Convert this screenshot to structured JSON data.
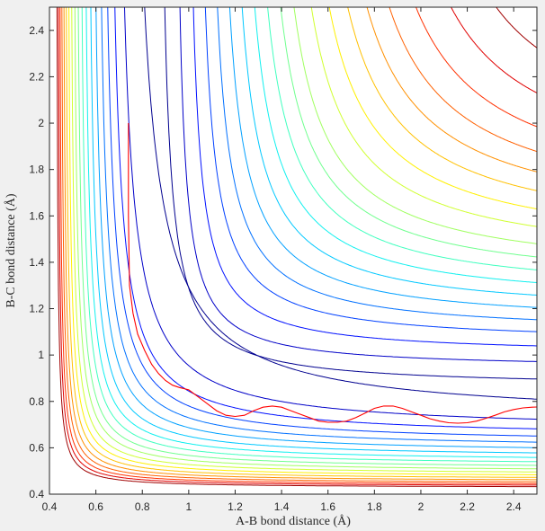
{
  "chart_data": {
    "type": "contour",
    "title": "",
    "xlabel": "A-B bond distance (Å)",
    "ylabel": "B-C bond distance (Å)",
    "xlim": [
      0.4,
      2.5
    ],
    "ylim": [
      0.4,
      2.5
    ],
    "x_ticks": [
      0.4,
      0.6,
      0.8,
      1,
      1.2,
      1.4,
      1.6,
      1.8,
      2,
      2.2,
      2.4
    ],
    "y_ticks": [
      0.4,
      0.6,
      0.8,
      1,
      1.2,
      1.4,
      1.6,
      1.8,
      2,
      2.2,
      2.4
    ],
    "grid": false,
    "colormap": "jet",
    "contour_levels": [
      {
        "x0": 0.72,
        "y0": 0.72,
        "k": 0.16,
        "color": "#00008f"
      },
      {
        "x0": 0.673,
        "y0": 0.673,
        "k": 0.092,
        "color": "#0000c8"
      },
      {
        "x0": 0.643,
        "y0": 0.643,
        "k": 0.072,
        "color": "#0010ff"
      },
      {
        "x0": 0.618,
        "y0": 0.618,
        "k": 0.062,
        "color": "#0040ff"
      },
      {
        "x0": 0.596,
        "y0": 0.596,
        "k": 0.054,
        "color": "#0070ff"
      },
      {
        "x0": 0.576,
        "y0": 0.576,
        "k": 0.047,
        "color": "#00a0ff"
      },
      {
        "x0": 0.557,
        "y0": 0.557,
        "k": 0.041,
        "color": "#00c8ff"
      },
      {
        "x0": 0.54,
        "y0": 0.54,
        "k": 0.036,
        "color": "#10f0ef"
      },
      {
        "x0": 0.524,
        "y0": 0.524,
        "k": 0.032,
        "color": "#40ffbf"
      },
      {
        "x0": 0.51,
        "y0": 0.51,
        "k": 0.028,
        "color": "#70ff8f"
      },
      {
        "x0": 0.497,
        "y0": 0.497,
        "k": 0.025,
        "color": "#a0ff60"
      },
      {
        "x0": 0.485,
        "y0": 0.485,
        "k": 0.022,
        "color": "#d0ff30"
      },
      {
        "x0": 0.474,
        "y0": 0.474,
        "k": 0.0195,
        "color": "#fff000"
      },
      {
        "x0": 0.464,
        "y0": 0.464,
        "k": 0.0172,
        "color": "#ffc000"
      },
      {
        "x0": 0.455,
        "y0": 0.455,
        "k": 0.0152,
        "color": "#ff9000"
      },
      {
        "x0": 0.447,
        "y0": 0.447,
        "k": 0.0134,
        "color": "#ff6000"
      },
      {
        "x0": 0.44,
        "y0": 0.44,
        "k": 0.0118,
        "color": "#ff3000"
      },
      {
        "x0": 0.434,
        "y0": 0.434,
        "k": 0.0104,
        "color": "#e00000"
      },
      {
        "x0": 0.428,
        "y0": 0.428,
        "k": 0.0092,
        "color": "#a00000"
      }
    ],
    "upper_contour_levels": [
      {
        "x0": 0.86,
        "y0": 0.86,
        "k": 0.06,
        "color": "#00008f"
      },
      {
        "x0": 0.93,
        "y0": 0.94,
        "k": 0.05,
        "color": "#0000c8"
      },
      {
        "x0": 0.98,
        "y0": 1.0,
        "k": 0.06,
        "color": "#0010ff"
      },
      {
        "x0": 1.02,
        "y0": 1.05,
        "k": 0.075,
        "color": "#0040ff"
      },
      {
        "x0": 1.06,
        "y0": 1.09,
        "k": 0.09,
        "color": "#0070ff"
      },
      {
        "x0": 1.1,
        "y0": 1.13,
        "k": 0.105,
        "color": "#00a0ff"
      },
      {
        "x0": 1.14,
        "y0": 1.17,
        "k": 0.12,
        "color": "#00c8ff"
      },
      {
        "x0": 1.18,
        "y0": 1.21,
        "k": 0.135,
        "color": "#10f0ef"
      },
      {
        "x0": 1.22,
        "y0": 1.25,
        "k": 0.15,
        "color": "#40ffbf"
      },
      {
        "x0": 1.26,
        "y0": 1.29,
        "k": 0.165,
        "color": "#70ff8f"
      },
      {
        "x0": 1.3,
        "y0": 1.33,
        "k": 0.18,
        "color": "#a0ff60"
      },
      {
        "x0": 1.35,
        "y0": 1.38,
        "k": 0.2,
        "color": "#d0ff30"
      },
      {
        "x0": 1.4,
        "y0": 1.43,
        "k": 0.22,
        "color": "#fff000"
      },
      {
        "x0": 1.45,
        "y0": 1.48,
        "k": 0.24,
        "color": "#ffc000"
      },
      {
        "x0": 1.5,
        "y0": 1.53,
        "k": 0.26,
        "color": "#ff9000"
      },
      {
        "x0": 1.56,
        "y0": 1.58,
        "k": 0.28,
        "color": "#ff6000"
      },
      {
        "x0": 1.63,
        "y0": 1.64,
        "k": 0.3,
        "color": "#ff3000"
      },
      {
        "x0": 1.72,
        "y0": 1.72,
        "k": 0.32,
        "color": "#e00000"
      },
      {
        "x0": 1.84,
        "y0": 1.84,
        "k": 0.32,
        "color": "#a00000"
      }
    ],
    "series": [
      {
        "color": "#ff0000",
        "x": [
          0.74,
          0.74,
          0.745,
          0.76,
          0.78,
          0.81,
          0.84,
          0.87,
          0.9,
          0.93,
          0.96,
          1.0,
          1.04,
          1.08,
          1.12,
          1.16,
          1.2,
          1.24,
          1.28,
          1.32,
          1.36,
          1.4,
          1.44,
          1.48,
          1.52,
          1.56,
          1.6,
          1.64,
          1.68,
          1.72,
          1.76,
          1.8,
          1.84,
          1.88,
          1.92,
          1.96,
          2.0,
          2.04,
          2.08,
          2.12,
          2.16,
          2.2,
          2.24,
          2.28,
          2.32,
          2.36,
          2.4,
          2.44,
          2.48,
          2.5
        ],
        "y": [
          2.0,
          1.6,
          1.3,
          1.18,
          1.09,
          1.02,
          0.96,
          0.92,
          0.89,
          0.87,
          0.86,
          0.85,
          0.82,
          0.79,
          0.76,
          0.74,
          0.735,
          0.74,
          0.76,
          0.775,
          0.78,
          0.775,
          0.76,
          0.745,
          0.73,
          0.715,
          0.71,
          0.71,
          0.715,
          0.73,
          0.75,
          0.77,
          0.78,
          0.78,
          0.77,
          0.755,
          0.74,
          0.725,
          0.715,
          0.708,
          0.706,
          0.708,
          0.715,
          0.727,
          0.74,
          0.755,
          0.765,
          0.772,
          0.775,
          0.776
        ]
      }
    ]
  }
}
